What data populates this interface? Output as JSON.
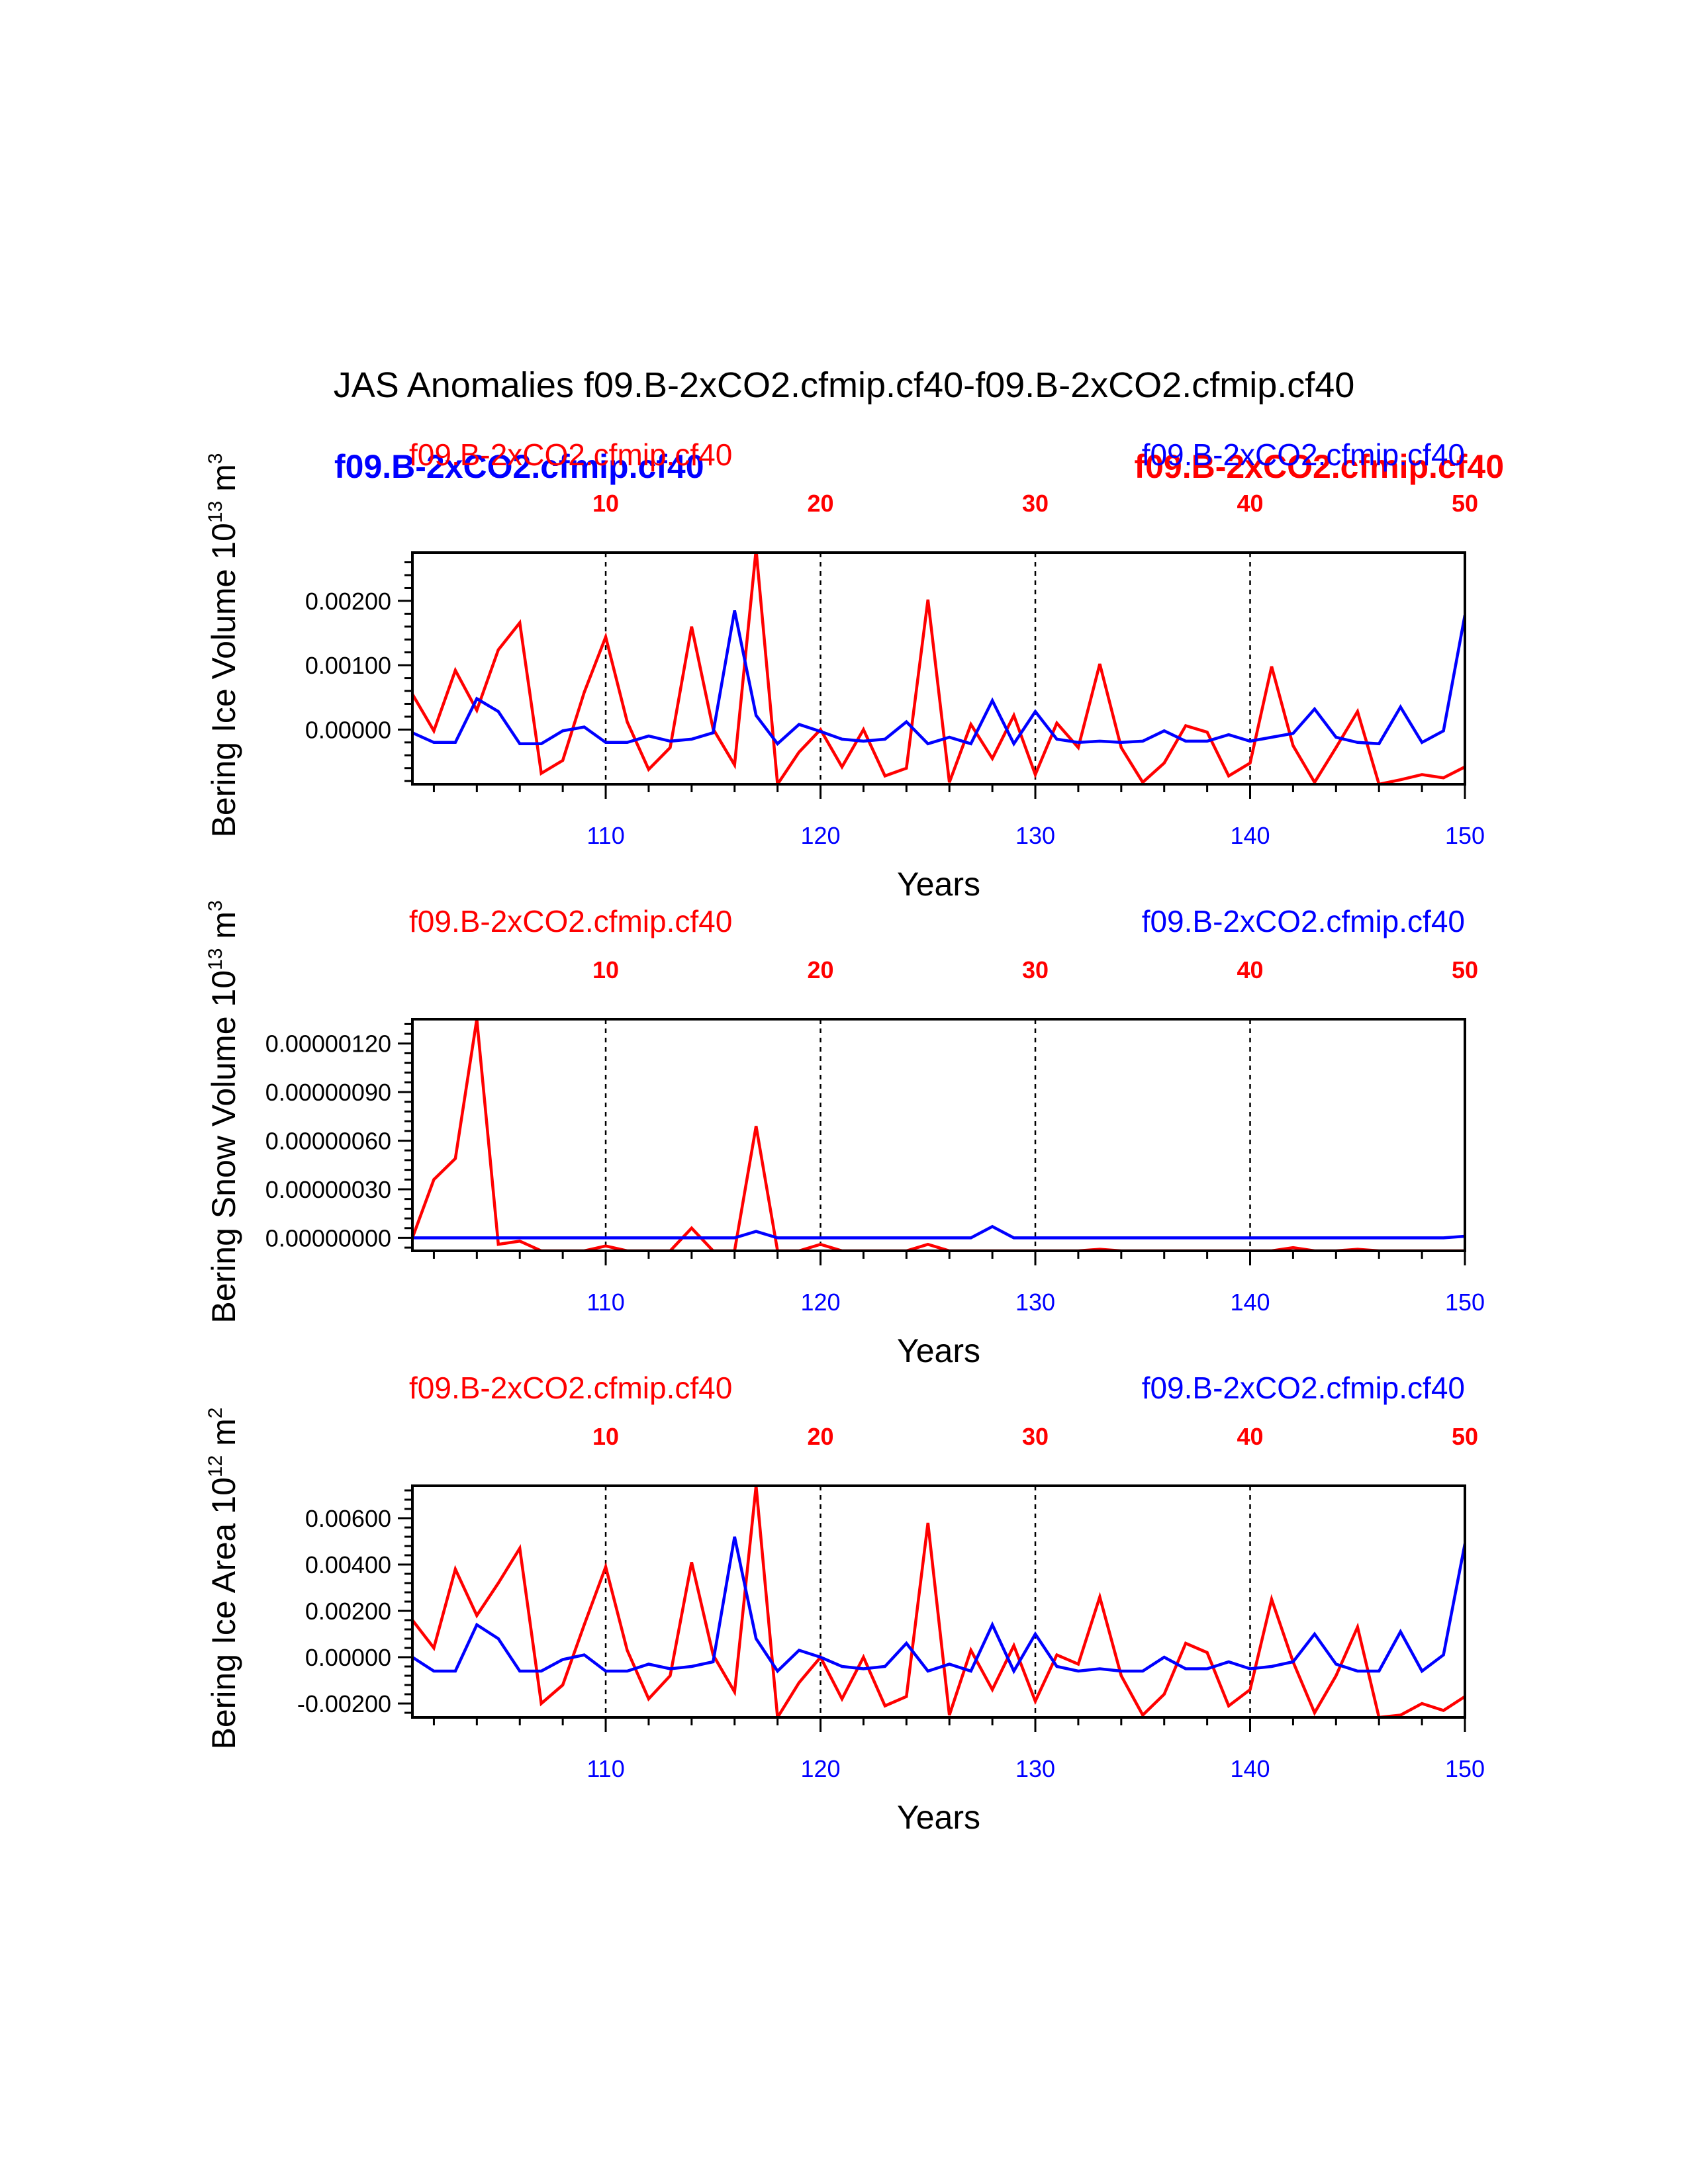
{
  "title": "JAS Anomalies f09.B-2xCO2.cfmip.cf40-f09.B-2xCO2.cfmip.cf40",
  "colors": {
    "case1": "#ff0000",
    "case2": "#0000ff",
    "axis": "#000000"
  },
  "extra_labels": {
    "bold_red": "f09.B-2xCO2.cfmip.cf40",
    "bold_blue": "f09.B-2xCO2.cfmip.cf40"
  },
  "chart_data": [
    {
      "type": "line",
      "ylabel_main": "Bering Ice Volume 10",
      "ylabel_exp": "13",
      "ylabel_unit": " m",
      "ylabel_unit_exp": "3",
      "xlabel": "Years",
      "left_label": "f09.B-2xCO2.cfmip.cf40",
      "right_label": "f09.B-2xCO2.cfmip.cf40",
      "yticks": [
        "0.00200",
        "0.00100",
        "0.00000"
      ],
      "ytick_values": [
        0.002,
        0.001,
        0.0
      ],
      "ylim": [
        -0.00085,
        0.00275
      ],
      "bottom_ticks": [
        "110",
        "120",
        "130",
        "140",
        "150"
      ],
      "bottom_tick_values": [
        110,
        120,
        130,
        140,
        150
      ],
      "xlim_bottom": [
        101,
        150
      ],
      "top_ticks": [
        "10",
        "20",
        "30",
        "40",
        "50"
      ],
      "top_tick_values": [
        10,
        20,
        30,
        40,
        50
      ],
      "xlim_top": [
        1,
        50
      ],
      "series": [
        {
          "name": "f09.B-2xCO2.cfmip.cf40",
          "color": "#ff0000",
          "axis": "top",
          "x": [
            1,
            2,
            3,
            4,
            5,
            6,
            7,
            8,
            9,
            10,
            11,
            12,
            13,
            14,
            15,
            16,
            17,
            18,
            19,
            20,
            21,
            22,
            23,
            24,
            25,
            26,
            27,
            28,
            29,
            30,
            31,
            32,
            33,
            34,
            35,
            36,
            37,
            38,
            39,
            40,
            41,
            42,
            43,
            44,
            45,
            46,
            47,
            48,
            49,
            50
          ],
          "values": [
            0.00055,
            -2e-05,
            0.00092,
            0.0003,
            0.00124,
            0.00166,
            -0.00068,
            -0.00048,
            0.00058,
            0.00144,
            0.00012,
            -0.00062,
            -0.00028,
            0.0016,
            1e-05,
            -0.00055,
            0.0028,
            -0.00085,
            -0.00035,
            0.0,
            -0.00058,
            0.0,
            -0.00072,
            -0.0006,
            0.00202,
            -0.00082,
            8e-05,
            -0.00045,
            0.00022,
            -0.0007,
            0.0001,
            -0.00028,
            0.00102,
            -0.00028,
            -0.00082,
            -0.00052,
            6e-05,
            -4e-05,
            -0.00072,
            -0.00052,
            0.00098,
            -0.00025,
            -0.00082,
            -0.00028,
            0.00028,
            -0.00085,
            -0.00078,
            -0.0007,
            -0.00075,
            -0.00058
          ]
        },
        {
          "name": "f09.B-2xCO2.cfmip.cf40",
          "color": "#0000ff",
          "axis": "bottom",
          "x": [
            101,
            102,
            103,
            104,
            105,
            106,
            107,
            108,
            109,
            110,
            111,
            112,
            113,
            114,
            115,
            116,
            117,
            118,
            119,
            120,
            121,
            122,
            123,
            124,
            125,
            126,
            127,
            128,
            129,
            130,
            131,
            132,
            133,
            134,
            135,
            136,
            137,
            138,
            139,
            140,
            141,
            142,
            143,
            144,
            145,
            146,
            147,
            148,
            149,
            150
          ],
          "values": [
            -5e-05,
            -0.0002,
            -0.0002,
            0.00048,
            0.00028,
            -0.00022,
            -0.00022,
            -2e-05,
            4e-05,
            -0.0002,
            -0.0002,
            -0.0001,
            -0.00018,
            -0.00015,
            -5e-05,
            0.00185,
            0.00022,
            -0.00022,
            8e-05,
            -3e-05,
            -0.00015,
            -0.00018,
            -0.00015,
            0.00012,
            -0.00022,
            -0.00012,
            -0.00022,
            0.00045,
            -0.00022,
            0.00028,
            -0.00015,
            -0.0002,
            -0.00018,
            -0.0002,
            -0.00018,
            -2e-05,
            -0.00018,
            -0.00018,
            -8e-05,
            -0.00018,
            -0.00012,
            -6e-05,
            0.00032,
            -0.00012,
            -0.0002,
            -0.00022,
            0.00035,
            -0.0002,
            -2e-05,
            0.00178
          ]
        }
      ]
    },
    {
      "type": "line",
      "ylabel_main": "Bering Snow Volume 10",
      "ylabel_exp": "13",
      "ylabel_unit": " m",
      "ylabel_unit_exp": "3",
      "xlabel": "Years",
      "left_label": "f09.B-2xCO2.cfmip.cf40",
      "right_label": "f09.B-2xCO2.cfmip.cf40",
      "yticks": [
        "0.00000120",
        "0.00000090",
        "0.00000060",
        "0.00000030",
        "0.00000000"
      ],
      "ytick_values": [
        1.2e-06,
        9e-07,
        6e-07,
        3e-07,
        0.0
      ],
      "ylim": [
        -8e-08,
        1.35e-06
      ],
      "bottom_ticks": [
        "110",
        "120",
        "130",
        "140",
        "150"
      ],
      "bottom_tick_values": [
        110,
        120,
        130,
        140,
        150
      ],
      "xlim_bottom": [
        101,
        150
      ],
      "top_ticks": [
        "10",
        "20",
        "30",
        "40",
        "50"
      ],
      "top_tick_values": [
        10,
        20,
        30,
        40,
        50
      ],
      "xlim_top": [
        1,
        50
      ],
      "series": [
        {
          "name": "f09.B-2xCO2.cfmip.cf40",
          "color": "#ff0000",
          "axis": "top",
          "x": [
            1,
            2,
            3,
            4,
            5,
            6,
            7,
            8,
            9,
            10,
            11,
            12,
            13,
            14,
            15,
            16,
            17,
            18,
            19,
            20,
            21,
            22,
            23,
            24,
            25,
            26,
            27,
            28,
            29,
            30,
            31,
            32,
            33,
            34,
            35,
            36,
            37,
            38,
            39,
            40,
            41,
            42,
            43,
            44,
            45,
            46,
            47,
            48,
            49,
            50
          ],
          "values": [
            0.0,
            3.6e-07,
            4.9e-07,
            1.35e-06,
            -4e-08,
            -2e-08,
            -8e-08,
            -8e-08,
            -8e-08,
            -5e-08,
            -8e-08,
            -8e-08,
            -8e-08,
            6e-08,
            -8e-08,
            -8e-08,
            6.9e-07,
            -8e-08,
            -8e-08,
            -4e-08,
            -8e-08,
            -8e-08,
            -8e-08,
            -8e-08,
            -4e-08,
            -8e-08,
            -8e-08,
            -8e-08,
            -8e-08,
            -8e-08,
            -8e-08,
            -8e-08,
            -7e-08,
            -8e-08,
            -8e-08,
            -8e-08,
            -8e-08,
            -8e-08,
            -8e-08,
            -8e-08,
            -8e-08,
            -6e-08,
            -8e-08,
            -8e-08,
            -7e-08,
            -8e-08,
            -8e-08,
            -8e-08,
            -8e-08,
            -8e-08
          ]
        },
        {
          "name": "f09.B-2xCO2.cfmip.cf40",
          "color": "#0000ff",
          "axis": "bottom",
          "x": [
            101,
            102,
            103,
            104,
            105,
            106,
            107,
            108,
            109,
            110,
            111,
            112,
            113,
            114,
            115,
            116,
            117,
            118,
            119,
            120,
            121,
            122,
            123,
            124,
            125,
            126,
            127,
            128,
            129,
            130,
            131,
            132,
            133,
            134,
            135,
            136,
            137,
            138,
            139,
            140,
            141,
            142,
            143,
            144,
            145,
            146,
            147,
            148,
            149,
            150
          ],
          "values": [
            0.0,
            0.0,
            0.0,
            0.0,
            0.0,
            0.0,
            0.0,
            0.0,
            0.0,
            0.0,
            0.0,
            0.0,
            0.0,
            0.0,
            0.0,
            0.0,
            4e-08,
            0.0,
            0.0,
            0.0,
            0.0,
            0.0,
            0.0,
            0.0,
            0.0,
            0.0,
            0.0,
            7e-08,
            0.0,
            0.0,
            0.0,
            0.0,
            0.0,
            0.0,
            0.0,
            0.0,
            0.0,
            0.0,
            0.0,
            0.0,
            0.0,
            0.0,
            0.0,
            0.0,
            0.0,
            0.0,
            0.0,
            0.0,
            0.0,
            1e-08
          ]
        }
      ]
    },
    {
      "type": "line",
      "ylabel_main": "Bering Ice Area 10",
      "ylabel_exp": "12",
      "ylabel_unit": " m",
      "ylabel_unit_exp": "2",
      "xlabel": "Years",
      "left_label": "f09.B-2xCO2.cfmip.cf40",
      "right_label": "f09.B-2xCO2.cfmip.cf40",
      "yticks": [
        "0.00600",
        "0.00400",
        "0.00200",
        "0.00000",
        "-0.00200"
      ],
      "ytick_values": [
        0.006,
        0.004,
        0.002,
        0.0,
        -0.002
      ],
      "ylim": [
        -0.0026,
        0.0074
      ],
      "bottom_ticks": [
        "110",
        "120",
        "130",
        "140",
        "150"
      ],
      "bottom_tick_values": [
        110,
        120,
        130,
        140,
        150
      ],
      "xlim_bottom": [
        101,
        150
      ],
      "top_ticks": [
        "10",
        "20",
        "30",
        "40",
        "50"
      ],
      "top_tick_values": [
        10,
        20,
        30,
        40,
        50
      ],
      "xlim_top": [
        1,
        50
      ],
      "series": [
        {
          "name": "f09.B-2xCO2.cfmip.cf40",
          "color": "#ff0000",
          "axis": "top",
          "x": [
            1,
            2,
            3,
            4,
            5,
            6,
            7,
            8,
            9,
            10,
            11,
            12,
            13,
            14,
            15,
            16,
            17,
            18,
            19,
            20,
            21,
            22,
            23,
            24,
            25,
            26,
            27,
            28,
            29,
            30,
            31,
            32,
            33,
            34,
            35,
            36,
            37,
            38,
            39,
            40,
            41,
            42,
            43,
            44,
            45,
            46,
            47,
            48,
            49,
            50
          ],
          "values": [
            0.0016,
            0.0004,
            0.0038,
            0.0018,
            0.0032,
            0.0047,
            -0.002,
            -0.0012,
            0.0014,
            0.0039,
            0.0003,
            -0.0018,
            -0.0008,
            0.0041,
            0.0001,
            -0.0015,
            0.0074,
            -0.0026,
            -0.0011,
            0.0,
            -0.0018,
            0.0,
            -0.0021,
            -0.0017,
            0.0058,
            -0.0025,
            0.0003,
            -0.0014,
            0.0005,
            -0.0019,
            0.0001,
            -0.0003,
            0.0026,
            -0.0008,
            -0.0025,
            -0.0016,
            0.0006,
            0.0002,
            -0.0021,
            -0.0014,
            0.0025,
            -0.0002,
            -0.0024,
            -0.0008,
            0.0013,
            -0.0026,
            -0.0025,
            -0.002,
            -0.0023,
            -0.0017
          ]
        },
        {
          "name": "f09.B-2xCO2.cfmip.cf40",
          "color": "#0000ff",
          "axis": "bottom",
          "x": [
            101,
            102,
            103,
            104,
            105,
            106,
            107,
            108,
            109,
            110,
            111,
            112,
            113,
            114,
            115,
            116,
            117,
            118,
            119,
            120,
            121,
            122,
            123,
            124,
            125,
            126,
            127,
            128,
            129,
            130,
            131,
            132,
            133,
            134,
            135,
            136,
            137,
            138,
            139,
            140,
            141,
            142,
            143,
            144,
            145,
            146,
            147,
            148,
            149,
            150
          ],
          "values": [
            0.0,
            -0.0006,
            -0.0006,
            0.0014,
            0.0008,
            -0.0006,
            -0.0006,
            -0.0001,
            0.0001,
            -0.0006,
            -0.0006,
            -0.0003,
            -0.0005,
            -0.0004,
            -0.0002,
            0.0052,
            0.0008,
            -0.0006,
            0.0003,
            0.0,
            -0.0004,
            -0.0005,
            -0.0004,
            0.0006,
            -0.0006,
            -0.0003,
            -0.0006,
            0.0014,
            -0.0006,
            0.001,
            -0.0004,
            -0.0006,
            -0.0005,
            -0.0006,
            -0.0006,
            0.0,
            -0.0005,
            -0.0005,
            -0.0002,
            -0.0005,
            -0.0004,
            -0.0002,
            0.001,
            -0.0003,
            -0.0006,
            -0.0006,
            0.0011,
            -0.0006,
            0.0001,
            0.0049
          ]
        }
      ]
    }
  ]
}
